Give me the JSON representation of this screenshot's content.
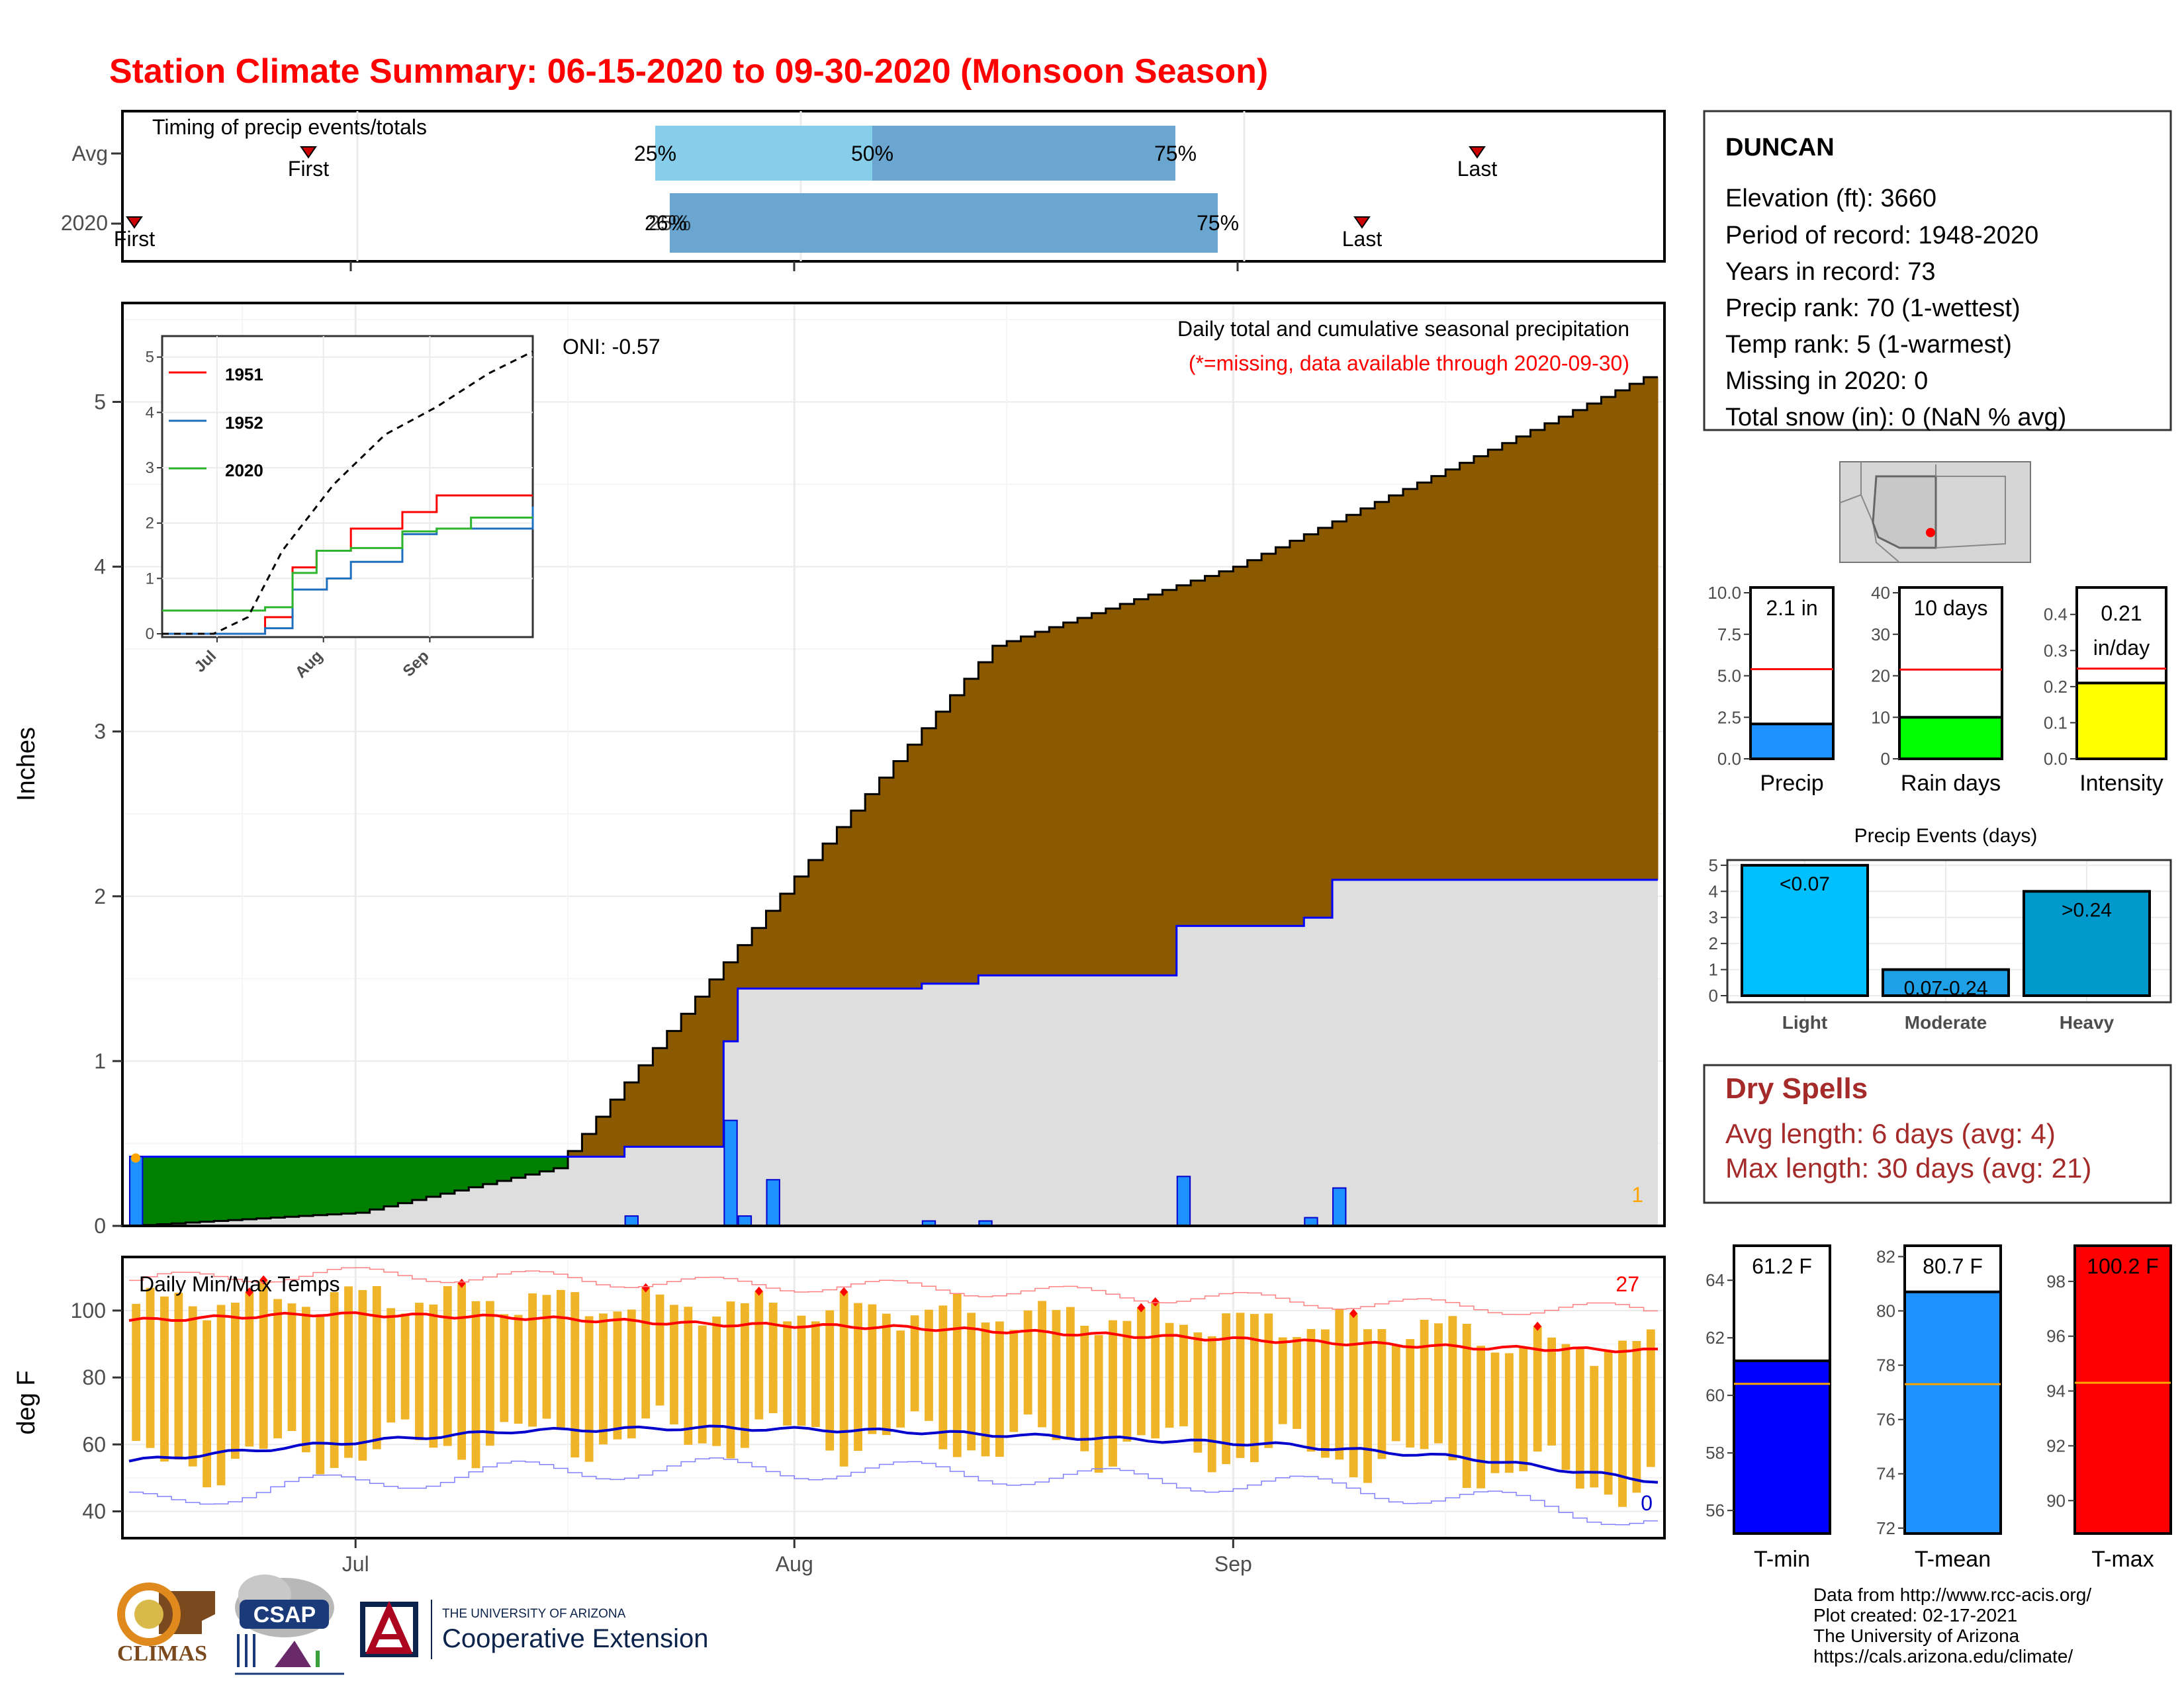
{
  "title": "Station Climate Summary: 06-15-2020 to 09-30-2020 (Monsoon Season)",
  "timing": {
    "title": "Timing of precip events/totals",
    "row_labels": [
      "Avg",
      "2020"
    ],
    "first_label": "First",
    "last_label": "Last",
    "avg_pct_labels": [
      "25%",
      "50%",
      "75%"
    ],
    "y2020_pct_labels": [
      "26%",
      "25%",
      "75%"
    ]
  },
  "months": [
    "Jul",
    "Aug",
    "Sep"
  ],
  "station": {
    "name": "DUNCAN",
    "lines": [
      "Elevation (ft): 3660",
      "Period of record: 1948-2020",
      "Years in record: 73",
      "Precip rank: 70 (1-wettest)",
      "Temp rank: 5 (1-warmest)",
      "Missing in 2020: 0",
      "Total snow (in): 0 (NaN % avg)"
    ]
  },
  "main_panel": {
    "ylabel": "Inches",
    "oni": "ONI: -0.57",
    "label": "Daily total and cumulative seasonal precipitation",
    "note": "(*=missing, data available through 2020-09-30)",
    "corner_count": "1"
  },
  "inset": {
    "legend": [
      "1951",
      "1952",
      "2020"
    ],
    "legend_colors": [
      "#ff0000",
      "#1f6fbf",
      "#2db52d"
    ],
    "x_ticks": [
      "Jul",
      "Aug",
      "Sep"
    ],
    "y_ticks": [
      "0",
      "1",
      "2",
      "3",
      "4",
      "5"
    ]
  },
  "temp_panel": {
    "ylabel": "deg F",
    "label": "Daily Min/Max Temps",
    "max_count": "27",
    "min_count": "0"
  },
  "mini_bars": [
    {
      "value_label": "2.1 in",
      "xlabel": "Precip",
      "ticks": [
        "0.0",
        "2.5",
        "5.0",
        "7.5",
        "10.0"
      ],
      "color": "#1e90ff"
    },
    {
      "value_label": "10 days",
      "xlabel": "Rain days",
      "ticks": [
        "0",
        "10",
        "20",
        "30",
        "40"
      ],
      "color": "#00ff00"
    },
    {
      "value_label": "0.21",
      "value_label2": "in/day",
      "xlabel": "Intensity",
      "ticks": [
        "0.0",
        "0.1",
        "0.2",
        "0.3",
        "0.4"
      ],
      "color": "#ffff00"
    }
  ],
  "events": {
    "title": "Precip Events (days)",
    "categories": [
      "Light",
      "Moderate",
      "Heavy"
    ],
    "bar_labels": [
      "<0.07",
      "0.07-0.24",
      ">0.24"
    ],
    "ticks": [
      "0",
      "1",
      "2",
      "3",
      "4",
      "5"
    ]
  },
  "dry_spells": {
    "title": "Dry Spells",
    "lines": [
      "Avg length: 6 days (avg: 4)",
      "Max length: 30 days (avg: 21)"
    ]
  },
  "temp_bars": [
    {
      "value_label": "61.2 F",
      "xlabel": "T-min",
      "ticks": [
        "56",
        "58",
        "60",
        "62",
        "64"
      ],
      "color": "#0000ff"
    },
    {
      "value_label": "80.7 F",
      "xlabel": "T-mean",
      "ticks": [
        "72",
        "74",
        "76",
        "78",
        "80",
        "82"
      ],
      "color": "#1e90ff"
    },
    {
      "value_label": "100.2 F",
      "xlabel": "T-max",
      "ticks": [
        "90",
        "92",
        "94",
        "96",
        "98"
      ],
      "color": "#ff0000"
    }
  ],
  "footer": [
    "Data from http://www.rcc-acis.org/",
    "Plot created: 02-17-2021",
    "The University of Arizona",
    "https://cals.arizona.edu/climate/"
  ],
  "logos": {
    "climas": "CLIMAS",
    "csap": "CSAP",
    "ua_small": "THE UNIVERSITY OF ARIZONA",
    "ua_big": "Cooperative Extension"
  },
  "chart_data": [
    {
      "type": "area",
      "title": "Daily total and cumulative seasonal precipitation",
      "ylabel": "Inches",
      "ylim": [
        0,
        5.6
      ],
      "series": [
        {
          "name": "2020",
          "x": [
            "2020-06-15",
            "2020-06-18",
            "2020-07-20",
            "2020-07-27",
            "2020-07-28",
            "2020-08-10",
            "2020-08-14",
            "2020-08-28",
            "2020-09-06",
            "2020-09-08",
            "2020-09-30"
          ],
          "values": [
            0.42,
            0.42,
            0.48,
            1.12,
            1.44,
            1.47,
            1.52,
            1.82,
            1.87,
            2.1,
            2.1
          ]
        },
        {
          "x": [
            "2020-06-15",
            "2020-07-01",
            "2020-07-15",
            "2020-08-01",
            "2020-08-15",
            "2020-09-01",
            "2020-09-15",
            "2020-09-30"
          ],
          "values": [
            0.0,
            0.08,
            0.35,
            2.12,
            3.52,
            4.0,
            4.55,
            5.15
          ]
        }
      ],
      "daily_bars": {
        "x": [
          "2020-06-15",
          "2020-07-20",
          "2020-07-27",
          "2020-07-28",
          "2020-07-30",
          "2020-08-10",
          "2020-08-14",
          "2020-08-28",
          "2020-09-06",
          "2020-09-08"
        ],
        "values": [
          0.42,
          0.06,
          0.64,
          0.06,
          0.28,
          0.03,
          0.03,
          0.3,
          0.05,
          0.23
        ]
      },
      "grid": true
    },
    {
      "type": "line",
      "ylim": [
        0,
        5.2
      ],
      "x_ticks": [
        "Jul",
        "Aug",
        "Sep"
      ],
      "series": [
        {
          "name": "1951",
          "x": [
            0,
            20,
            30,
            38,
            45,
            55,
            70,
            80,
            90,
            108
          ],
          "values": [
            0,
            0,
            0.3,
            1.2,
            1.5,
            1.9,
            2.2,
            2.5,
            2.5,
            2.5
          ]
        },
        {
          "name": "1952",
          "x": [
            0,
            20,
            30,
            38,
            48,
            55,
            70,
            80,
            90,
            108
          ],
          "values": [
            0,
            0,
            0.1,
            0.8,
            1.0,
            1.3,
            1.8,
            1.9,
            1.9,
            2.3
          ]
        },
        {
          "name": "2020",
          "x": [
            0,
            20,
            30,
            38,
            45,
            55,
            70,
            80,
            90,
            108
          ],
          "values": [
            0.42,
            0.42,
            0.48,
            1.1,
            1.5,
            1.55,
            1.85,
            1.9,
            2.1,
            2.1
          ]
        },
        {
          "x": [
            0,
            15,
            25,
            35,
            50,
            65,
            80,
            95,
            108
          ],
          "values": [
            0,
            0,
            0.3,
            1.5,
            2.7,
            3.6,
            4.1,
            4.7,
            5.1
          ]
        }
      ]
    },
    {
      "type": "bar",
      "title": "Daily Min/Max Temps",
      "ylabel": "deg F",
      "ylim": [
        32,
        116
      ],
      "x_ticks": [
        "Jul",
        "Aug",
        "Sep"
      ],
      "series": [
        {
          "name": "avg max",
          "values": [
            97,
            99,
            98,
            96,
            95,
            93,
            91,
            89,
            88
          ]
        },
        {
          "name": "avg min",
          "values": [
            55,
            60,
            64,
            65,
            64,
            62,
            60,
            56,
            49
          ]
        }
      ]
    },
    {
      "type": "bar",
      "categories": [
        "Light",
        "Moderate",
        "Heavy"
      ],
      "values": [
        5,
        1,
        4
      ],
      "title": "Precip Events (days)",
      "ylim": [
        0,
        5.2
      ]
    }
  ]
}
